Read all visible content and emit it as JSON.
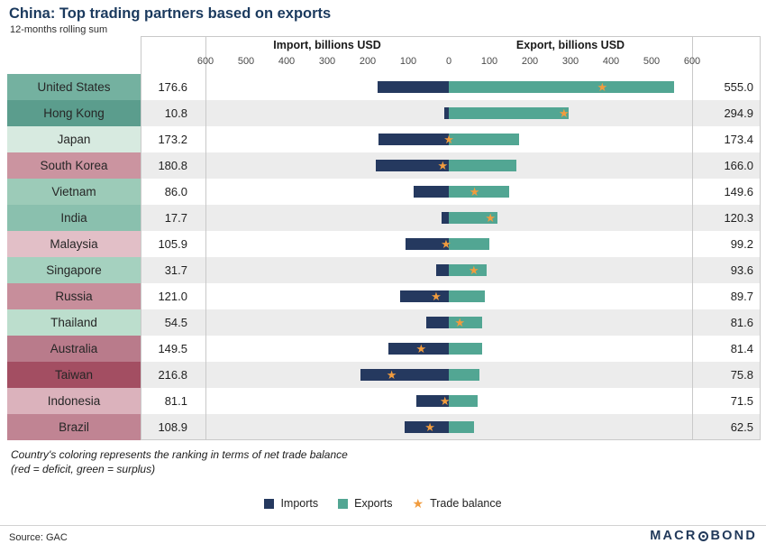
{
  "header": {
    "title": "China: Top trading partners based on exports",
    "subtitle": "12-months rolling sum"
  },
  "chart_data": {
    "type": "bar",
    "orientation": "horizontal-diverging",
    "axis": {
      "import_label": "Import, billions USD",
      "export_label": "Export, billions USD",
      "ticks": [
        "600",
        "500",
        "400",
        "300",
        "200",
        "100",
        "0",
        "100",
        "200",
        "300",
        "400",
        "500",
        "600"
      ],
      "max": 600
    },
    "colors": {
      "imports": "#25395f",
      "exports": "#52a693",
      "trade_balance": "#f19c3e",
      "alt_row": "#ececec"
    },
    "categories": [
      "United States",
      "Hong Kong",
      "Japan",
      "South Korea",
      "Vietnam",
      "India",
      "Malaysia",
      "Singapore",
      "Russia",
      "Thailand",
      "Australia",
      "Taiwan",
      "Indonesia",
      "Brazil"
    ],
    "series": [
      {
        "name": "Imports",
        "values": [
          176.6,
          10.8,
          173.2,
          180.8,
          86.0,
          17.7,
          105.9,
          31.7,
          121.0,
          54.5,
          149.5,
          216.8,
          81.1,
          108.9
        ]
      },
      {
        "name": "Exports",
        "values": [
          555.0,
          294.9,
          173.4,
          166.0,
          149.6,
          120.3,
          99.2,
          93.6,
          89.7,
          81.6,
          81.4,
          75.8,
          71.5,
          62.5
        ]
      },
      {
        "name": "Trade balance",
        "values": [
          378.4,
          284.1,
          0.2,
          -14.8,
          63.6,
          102.6,
          -6.7,
          61.9,
          -31.3,
          27.1,
          -68.1,
          -141.0,
          -9.6,
          -46.4
        ]
      }
    ],
    "rows": [
      {
        "country": "United States",
        "import": 176.6,
        "export": 555.0,
        "balance": 378.4,
        "color": "#74b1a0"
      },
      {
        "country": "Hong Kong",
        "import": 10.8,
        "export": 294.9,
        "balance": 284.1,
        "color": "#5b9d8d"
      },
      {
        "country": "Japan",
        "import": 173.2,
        "export": 173.4,
        "balance": 0.2,
        "color": "#d7eae0"
      },
      {
        "country": "South Korea",
        "import": 180.8,
        "export": 166.0,
        "balance": -14.8,
        "color": "#cb94a0"
      },
      {
        "country": "Vietnam",
        "import": 86.0,
        "export": 149.6,
        "balance": 63.6,
        "color": "#9ccbb8"
      },
      {
        "country": "India",
        "import": 17.7,
        "export": 120.3,
        "balance": 102.6,
        "color": "#8ac0ae"
      },
      {
        "country": "Malaysia",
        "import": 105.9,
        "export": 99.2,
        "balance": -6.7,
        "color": "#e2bfc7"
      },
      {
        "country": "Singapore",
        "import": 31.7,
        "export": 93.6,
        "balance": 61.9,
        "color": "#a5d1bf"
      },
      {
        "country": "Russia",
        "import": 121.0,
        "export": 89.7,
        "balance": -31.3,
        "color": "#c78e9b"
      },
      {
        "country": "Thailand",
        "import": 54.5,
        "export": 81.6,
        "balance": 27.1,
        "color": "#bcdecd"
      },
      {
        "country": "Australia",
        "import": 149.5,
        "export": 81.4,
        "balance": -68.1,
        "color": "#b97b8b"
      },
      {
        "country": "Taiwan",
        "import": 216.8,
        "export": 75.8,
        "balance": -141.0,
        "color": "#a34e62"
      },
      {
        "country": "Indonesia",
        "import": 81.1,
        "export": 71.5,
        "balance": -9.6,
        "color": "#dbb2bc"
      },
      {
        "country": "Brazil",
        "import": 108.9,
        "export": 62.5,
        "balance": -46.4,
        "color": "#c08493"
      }
    ]
  },
  "note": {
    "line1": "Country's coloring represents the ranking in terms of net trade balance",
    "line2": "(red = deficit, green = surplus)"
  },
  "legend": [
    {
      "label": "Imports"
    },
    {
      "label": "Exports"
    },
    {
      "label": "Trade balance"
    }
  ],
  "footer": {
    "source": "Source: GAC",
    "brand_left": "MACR",
    "brand_right": "BOND"
  }
}
